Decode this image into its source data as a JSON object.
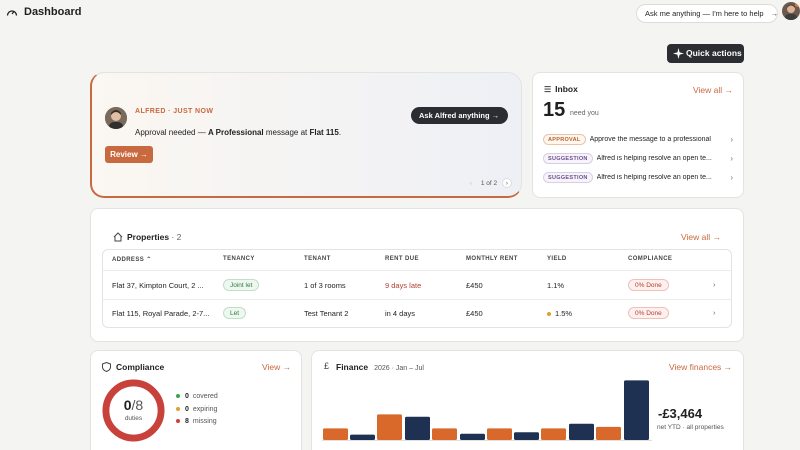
{
  "header": {
    "title": "Dashboard",
    "ask_label": "Ask me anything — I'm here to help",
    "ask_arrow": "→"
  },
  "quick_actions": {
    "label": "Quick actions"
  },
  "alfred": {
    "meta": "ALFRED · JUST NOW",
    "approval_prefix": "Approval needed — ",
    "approval_bold": "A Professional",
    "approval_mid": " message at ",
    "approval_place": "Flat 115",
    "approval_end": ".",
    "review_label": "Review →",
    "ask_label": "Ask Alfred anything →",
    "pager": "1 of 2",
    "prev": "‹",
    "next": "›"
  },
  "inbox": {
    "title": "Inbox",
    "view_all": "View all →",
    "count": "15",
    "count_label": "need you",
    "items": [
      {
        "badge": "APPROVAL",
        "text": "Approve the message to a professional"
      },
      {
        "badge": "SUGGESTION",
        "text": "Alfred is helping resolve an open te..."
      },
      {
        "badge": "SUGGESTION",
        "text": "Alfred is helping resolve an open te..."
      }
    ]
  },
  "properties": {
    "title": "Properties",
    "count": "· 2",
    "view_all": "View all →",
    "columns": [
      "ADDRESS ⌃",
      "TENANCY",
      "TENANT",
      "RENT DUE",
      "MONTHLY RENT",
      "YIELD",
      "COMPLIANCE"
    ],
    "rows": [
      {
        "address": "Flat 37, Kimpton Court, 2 ...",
        "tenancy": "Joint let",
        "tenant": "1 of 3 rooms",
        "rent_due": "9 days late",
        "monthly_rent": "£450",
        "yield": "1.1%",
        "compliance": "0% Done"
      },
      {
        "address": "Flat 115, Royal Parade, 2-7...",
        "tenancy": "Let",
        "tenant": "Test Tenant 2",
        "rent_due": "in 4 days",
        "monthly_rent": "£450",
        "yield": "1.5%",
        "compliance": "0% Done"
      }
    ]
  },
  "compliance": {
    "title": "Compliance",
    "view": "View →",
    "done": "0",
    "total": "/8",
    "caption": "duties",
    "covered_fraction": 0,
    "legend": [
      {
        "count": "0",
        "label": "covered",
        "color": "#3fa34d"
      },
      {
        "count": "0",
        "label": "expiring",
        "color": "#e0a030"
      },
      {
        "count": "8",
        "label": "missing",
        "color": "#c8413a"
      }
    ]
  },
  "finance": {
    "title": "Finance",
    "subtitle": "2026 · Jan – Jul",
    "view": "View finances →",
    "total": "-£3,464",
    "caption": "net YTD · all properties",
    "colors": {
      "income": "#d8692a",
      "expense": "#1f3152"
    }
  },
  "chart_data": {
    "type": "bar",
    "series": [
      {
        "values": [
          15,
          33,
          15,
          15,
          15,
          17,
          77
        ]
      },
      {
        "values": [
          7,
          30,
          8,
          10,
          21
        ]
      }
    ]
  }
}
